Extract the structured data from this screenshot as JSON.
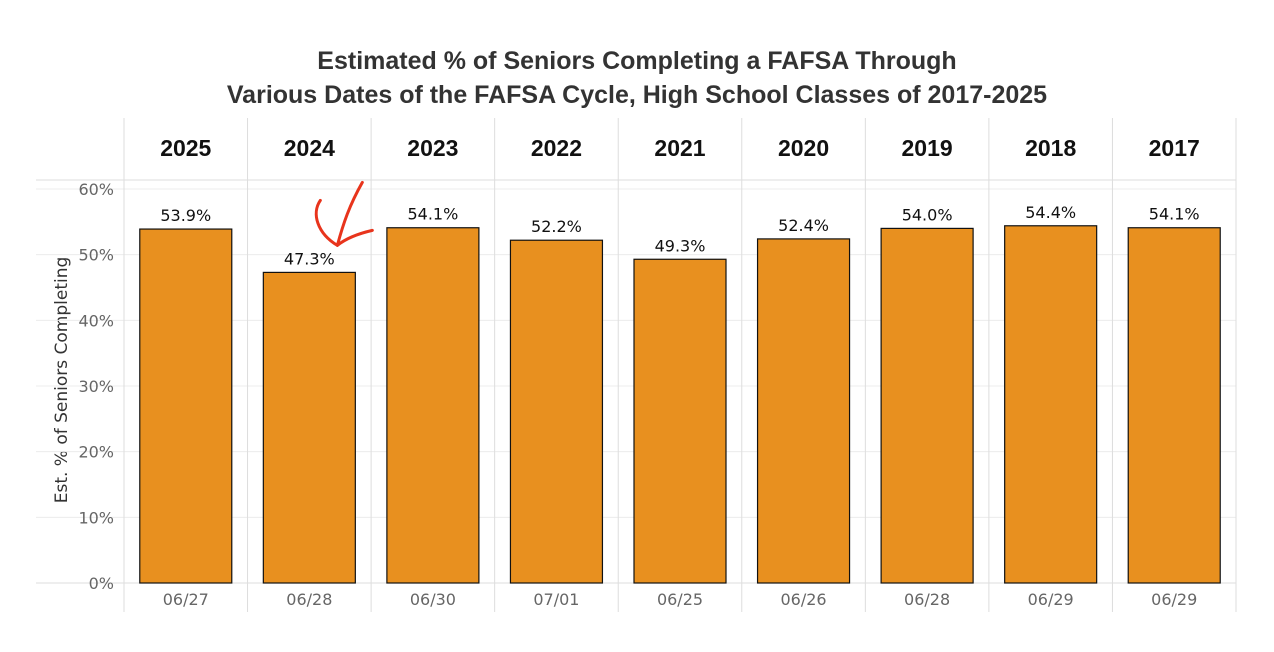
{
  "chart_data": {
    "type": "bar",
    "title": "Estimated % of Seniors Completing a FAFSA Through",
    "subtitle": "Various Dates of the FAFSA Cycle, High School Classes of 2017-2025",
    "ylabel": "Est. % of Seniors Completing",
    "ylim": [
      0,
      60
    ],
    "yticks": [
      "0%",
      "10%",
      "20%",
      "30%",
      "40%",
      "50%",
      "60%"
    ],
    "categories": [
      "2025",
      "2024",
      "2023",
      "2022",
      "2021",
      "2020",
      "2019",
      "2018",
      "2017"
    ],
    "dates": [
      "06/27",
      "06/28",
      "06/30",
      "07/01",
      "06/25",
      "06/26",
      "06/28",
      "06/29",
      "06/29"
    ],
    "values": [
      53.9,
      47.3,
      54.1,
      52.2,
      49.3,
      52.4,
      54.0,
      54.4,
      54.1
    ],
    "value_labels": [
      "53.9%",
      "47.3%",
      "54.1%",
      "52.2%",
      "49.3%",
      "52.4%",
      "54.0%",
      "54.4%",
      "54.1%"
    ],
    "bar_color": "#E8901F",
    "annotation": {
      "type": "handwritten-check-mark",
      "target_category": "2024",
      "color": "#E8341C"
    }
  }
}
